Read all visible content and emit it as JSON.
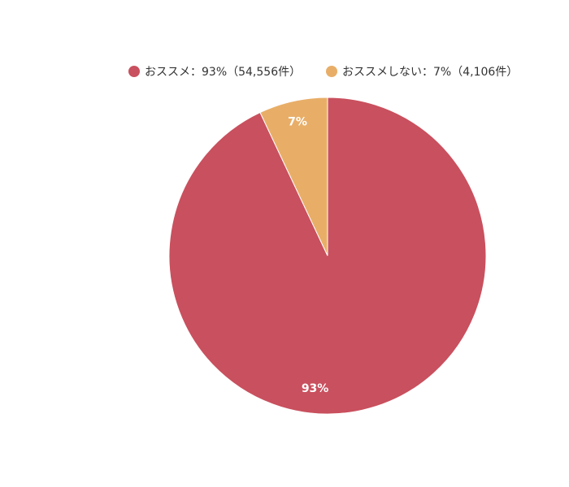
{
  "chart_data": {
    "type": "pie",
    "title": "",
    "start_angle": "12 o'clock",
    "direction": "clockwise",
    "legend_position": "top",
    "slices": [
      {
        "legend_label": "おススメ：93%（54,556件）",
        "data_label": "93%",
        "count": 54556,
        "percent": 93,
        "color": "#c9505e"
      },
      {
        "legend_label": "おススメしない：7%（4,106件）",
        "data_label": "7%",
        "count": 4106,
        "percent": 7,
        "color": "#e8ae68"
      }
    ]
  }
}
